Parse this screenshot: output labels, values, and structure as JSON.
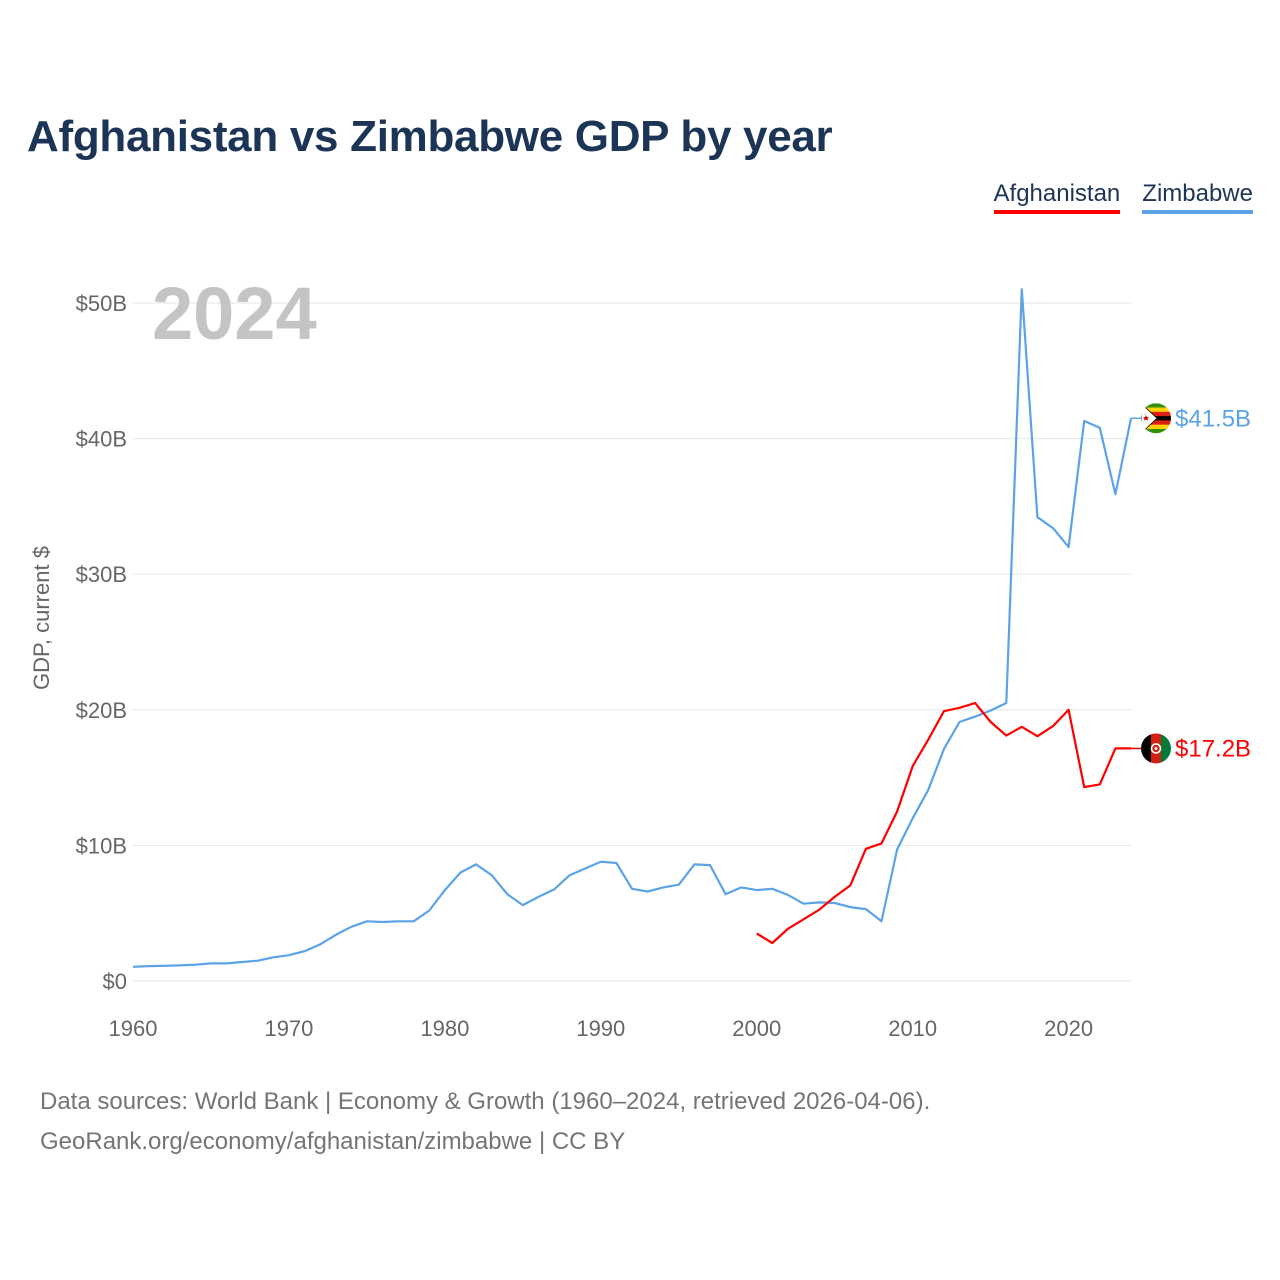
{
  "title": "Afghanistan vs Zimbabwe GDP by year",
  "legend": [
    {
      "label": "Afghanistan",
      "color": "#ff0000"
    },
    {
      "label": "Zimbabwe",
      "color": "#5ba3e6"
    }
  ],
  "source": {
    "line1": "Data sources: World Bank | Economy & Growth (1960–2024, retrieved 2026-04-06).",
    "line2": "GeoRank.org/economy/afghanistan/zimbabwe | CC BY"
  },
  "chart_data": {
    "type": "line",
    "year_label": "2024",
    "ylabel": "GDP, current $",
    "xlim": [
      1960,
      2024
    ],
    "ylim": [
      0,
      50
    ],
    "xticks": [
      1960,
      1970,
      1980,
      1990,
      2000,
      2010,
      2020
    ],
    "yticks": [
      0,
      10,
      20,
      30,
      40,
      50
    ],
    "ytick_labels": [
      "$0",
      "$10B",
      "$20B",
      "$30B",
      "$40B",
      "$50B"
    ],
    "grid": true,
    "series": [
      {
        "name": "Zimbabwe",
        "color": "#5ba3e6",
        "end_label": "$41.5B",
        "flag_icon": "zimbabwe-flag-icon",
        "x": [
          1960,
          1961,
          1962,
          1963,
          1964,
          1965,
          1966,
          1967,
          1968,
          1969,
          1970,
          1971,
          1972,
          1973,
          1974,
          1975,
          1976,
          1977,
          1978,
          1979,
          1980,
          1981,
          1982,
          1983,
          1984,
          1985,
          1986,
          1987,
          1988,
          1989,
          1990,
          1991,
          1992,
          1993,
          1994,
          1995,
          1996,
          1997,
          1998,
          1999,
          2000,
          2001,
          2002,
          2003,
          2004,
          2005,
          2006,
          2007,
          2008,
          2009,
          2010,
          2011,
          2012,
          2013,
          2014,
          2015,
          2016,
          2017,
          2018,
          2019,
          2020,
          2021,
          2022,
          2023,
          2024
        ],
        "values": [
          1.05,
          1.1,
          1.12,
          1.15,
          1.2,
          1.3,
          1.3,
          1.4,
          1.5,
          1.75,
          1.9,
          2.2,
          2.7,
          3.4,
          4.0,
          4.4,
          4.35,
          4.4,
          4.4,
          5.2,
          6.7,
          8.0,
          8.6,
          7.8,
          6.4,
          5.6,
          6.2,
          6.75,
          7.8,
          8.3,
          8.8,
          8.7,
          6.8,
          6.6,
          6.9,
          7.1,
          8.6,
          8.55,
          6.4,
          6.9,
          6.7,
          6.8,
          6.35,
          5.7,
          5.8,
          5.75,
          5.45,
          5.3,
          4.4,
          9.7,
          12.0,
          14.1,
          17.1,
          19.1,
          19.5,
          19.95,
          20.5,
          51.0,
          34.2,
          33.4,
          32.0,
          41.3,
          40.8,
          35.9,
          41.5
        ]
      },
      {
        "name": "Afghanistan",
        "color": "#ff0000",
        "end_label": "$17.2B",
        "flag_icon": "afghanistan-flag-icon",
        "x": [
          2000,
          2001,
          2002,
          2003,
          2004,
          2005,
          2006,
          2007,
          2008,
          2009,
          2010,
          2011,
          2012,
          2013,
          2014,
          2015,
          2016,
          2017,
          2018,
          2019,
          2020,
          2021,
          2022,
          2023,
          2024
        ],
        "values": [
          3.5,
          2.8,
          3.85,
          4.55,
          5.25,
          6.2,
          7.05,
          9.75,
          10.15,
          12.5,
          15.85,
          17.8,
          19.9,
          20.15,
          20.5,
          19.1,
          18.1,
          18.75,
          18.05,
          18.8,
          20.0,
          14.3,
          14.5,
          17.15,
          17.15
        ]
      }
    ]
  }
}
